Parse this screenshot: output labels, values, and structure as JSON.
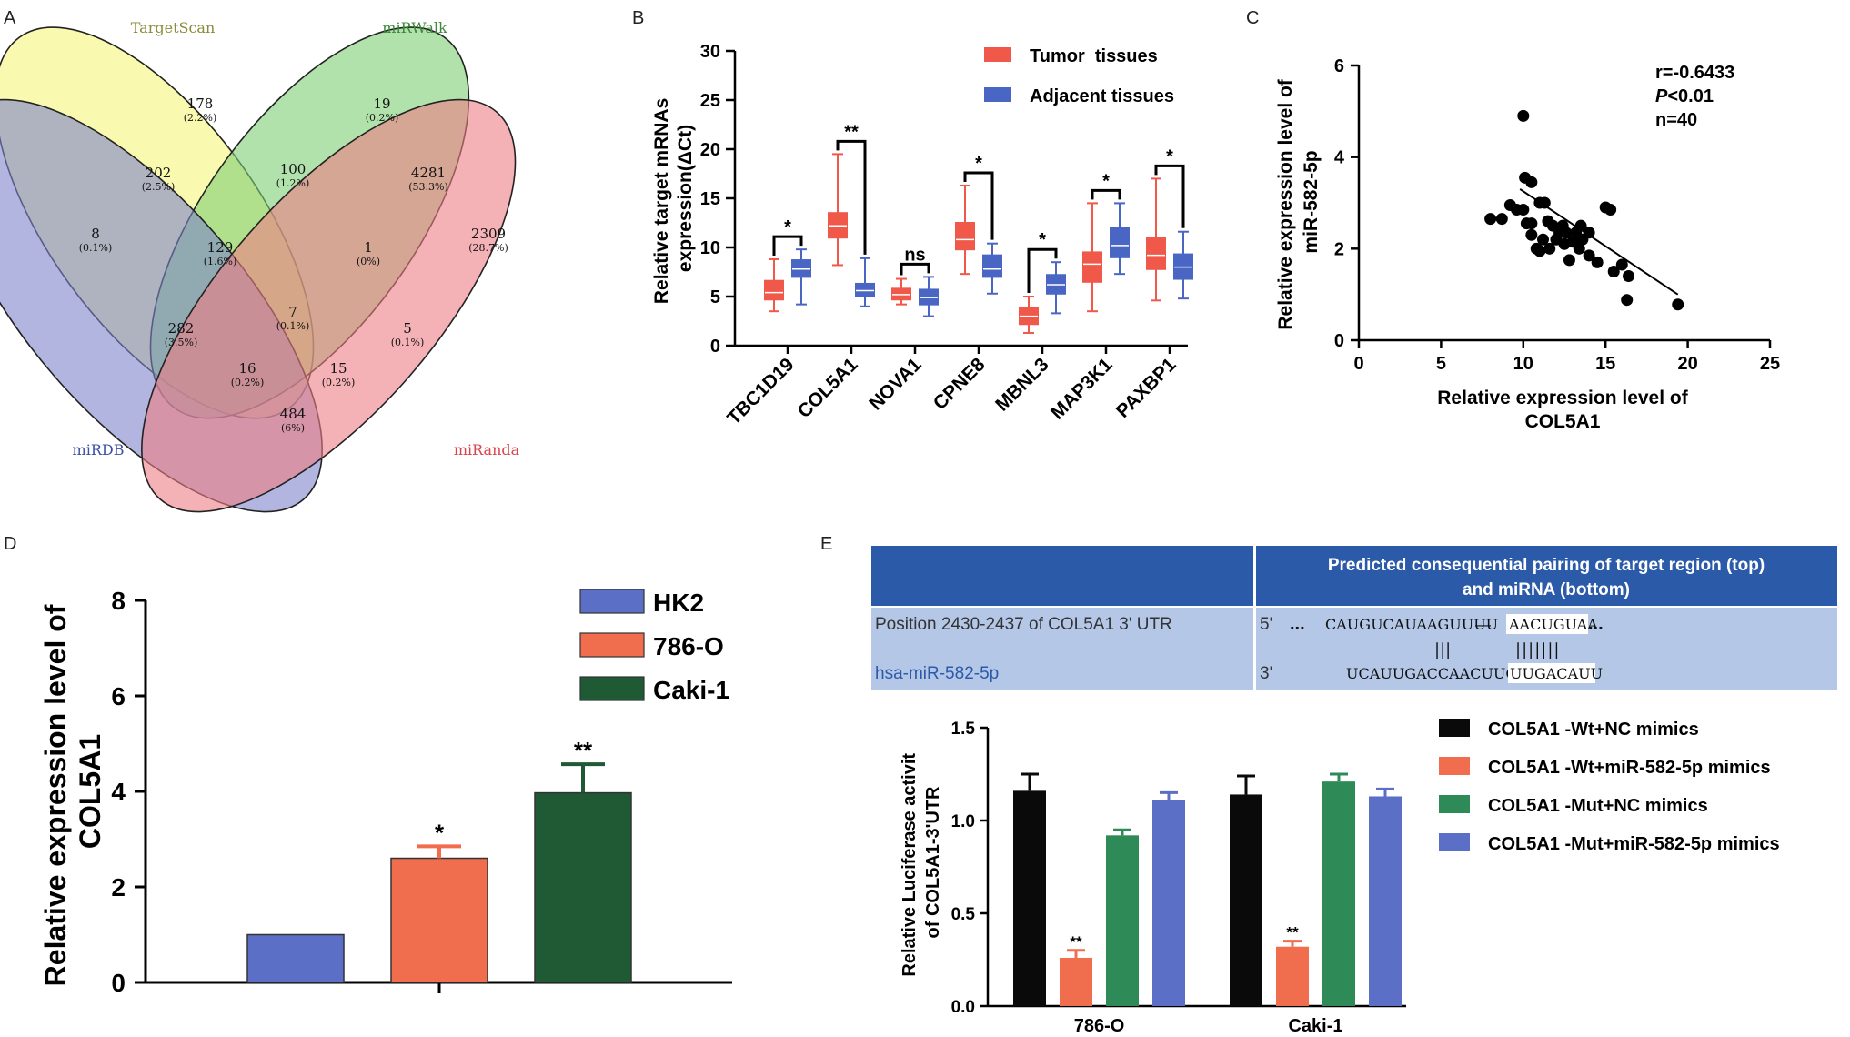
{
  "panels": [
    "A",
    "B",
    "C",
    "D",
    "E"
  ],
  "chart_data": [
    {
      "panel": "A",
      "type": "venn",
      "sets": [
        {
          "name": "TargetScan",
          "color": "#f5f57a",
          "label_color": "#8a8a3a"
        },
        {
          "name": "miRWalk",
          "color": "#7fcf75",
          "label_color": "#3d8a3d"
        },
        {
          "name": "miRDB",
          "color": "#7d84c9",
          "label_color": "#3b4fa8"
        },
        {
          "name": "miRanda",
          "color": "#ef7f86",
          "label_color": "#d9454d"
        }
      ],
      "regions": [
        {
          "count": "178",
          "pct": "(2.2%)"
        },
        {
          "count": "19",
          "pct": "(0.2%)"
        },
        {
          "count": "202",
          "pct": "(2.5%)"
        },
        {
          "count": "100",
          "pct": "(1.2%)"
        },
        {
          "count": "4281",
          "pct": "(53.3%)"
        },
        {
          "count": "8",
          "pct": "(0.1%)"
        },
        {
          "count": "129",
          "pct": "(1.6%)"
        },
        {
          "count": "1",
          "pct": "(0%)"
        },
        {
          "count": "2309",
          "pct": "(28.7%)"
        },
        {
          "count": "282",
          "pct": "(3.5%)"
        },
        {
          "count": "7",
          "pct": "(0.1%)"
        },
        {
          "count": "5",
          "pct": "(0.1%)"
        },
        {
          "count": "16",
          "pct": "(0.2%)"
        },
        {
          "count": "15",
          "pct": "(0.2%)"
        },
        {
          "count": "484",
          "pct": "(6%)"
        }
      ]
    },
    {
      "panel": "B",
      "type": "box",
      "ylabel": "Relative target mRNAs expression(ΔCt)",
      "ylim": [
        0,
        30
      ],
      "yticks": [
        0,
        5,
        10,
        15,
        20,
        25,
        30
      ],
      "categories": [
        "TBC1D19",
        "COL5A1",
        "NOVA1",
        "CPNE8",
        "MBNL3",
        "MAP3K1",
        "PAXBP1"
      ],
      "significance": [
        "*",
        "**",
        "ns",
        "*",
        "*",
        "*",
        "*"
      ],
      "series": [
        {
          "name": "Tumor  tissues",
          "color": "#f0584a",
          "boxes": [
            {
              "min": 3.5,
              "q1": 4.7,
              "median": 5.4,
              "q3": 6.6,
              "max": 8.8
            },
            {
              "min": 8.2,
              "q1": 11.0,
              "median": 12.2,
              "q3": 13.5,
              "max": 19.5
            },
            {
              "min": 4.2,
              "q1": 4.7,
              "median": 5.2,
              "q3": 5.8,
              "max": 6.8
            },
            {
              "min": 7.3,
              "q1": 9.8,
              "median": 10.8,
              "q3": 12.5,
              "max": 16.3
            },
            {
              "min": 1.3,
              "q1": 2.2,
              "median": 3.0,
              "q3": 3.8,
              "max": 5.0
            },
            {
              "min": 3.5,
              "q1": 6.5,
              "median": 8.3,
              "q3": 9.5,
              "max": 14.5
            },
            {
              "min": 4.6,
              "q1": 7.8,
              "median": 9.2,
              "q3": 11.0,
              "max": 17.0
            }
          ]
        },
        {
          "name": "Adjacent tissues",
          "color": "#4a66c4",
          "boxes": [
            {
              "min": 4.2,
              "q1": 7.0,
              "median": 7.8,
              "q3": 8.7,
              "max": 9.8
            },
            {
              "min": 4.0,
              "q1": 5.0,
              "median": 5.6,
              "q3": 6.3,
              "max": 8.9
            },
            {
              "min": 3.0,
              "q1": 4.2,
              "median": 4.9,
              "q3": 5.7,
              "max": 7.0
            },
            {
              "min": 5.3,
              "q1": 7.0,
              "median": 7.8,
              "q3": 9.2,
              "max": 10.4
            },
            {
              "min": 3.3,
              "q1": 5.3,
              "median": 6.2,
              "q3": 7.2,
              "max": 8.5
            },
            {
              "min": 7.3,
              "q1": 9.0,
              "median": 10.2,
              "q3": 12.0,
              "max": 14.5
            },
            {
              "min": 4.8,
              "q1": 6.8,
              "median": 8.0,
              "q3": 9.3,
              "max": 11.6
            }
          ]
        }
      ]
    },
    {
      "panel": "C",
      "type": "scatter",
      "xlabel": "Relative expression level of COL5A1",
      "xlabel_lines": [
        "Relative expression level of",
        "COL5A1"
      ],
      "ylabel": "Relative expression level of miR-582-5p",
      "ylabel_lines": [
        "Relative expression level of",
        "miR-582-5p"
      ],
      "xlim": [
        0,
        25
      ],
      "ylim": [
        0,
        6
      ],
      "xticks": [
        0,
        5,
        10,
        15,
        20,
        25
      ],
      "yticks": [
        0,
        2,
        4,
        6
      ],
      "annotation": {
        "r": "r=-0.6433",
        "p_italic": "P",
        "p_rest": "<0.01",
        "n": "n=40"
      },
      "trend": {
        "x1": 9.8,
        "y1": 3.3,
        "x2": 19.4,
        "y2": 1.0
      },
      "points": [
        [
          10.0,
          4.9
        ],
        [
          10.1,
          3.55
        ],
        [
          10.5,
          3.45
        ],
        [
          8.0,
          2.65
        ],
        [
          8.7,
          2.65
        ],
        [
          9.2,
          2.95
        ],
        [
          9.6,
          2.85
        ],
        [
          10.0,
          2.85
        ],
        [
          10.2,
          2.55
        ],
        [
          10.5,
          2.55
        ],
        [
          11.0,
          3.0
        ],
        [
          11.3,
          3.0
        ],
        [
          11.5,
          2.6
        ],
        [
          11.8,
          2.5
        ],
        [
          12.2,
          2.35
        ],
        [
          12.6,
          2.35
        ],
        [
          13.2,
          2.35
        ],
        [
          13.5,
          2.5
        ],
        [
          14.0,
          2.35
        ],
        [
          15.0,
          2.9
        ],
        [
          15.3,
          2.85
        ],
        [
          10.5,
          2.3
        ],
        [
          11.2,
          2.2
        ],
        [
          11.6,
          2.0
        ],
        [
          12.0,
          2.2
        ],
        [
          12.5,
          2.1
        ],
        [
          13.0,
          2.15
        ],
        [
          13.4,
          2.0
        ],
        [
          10.8,
          2.0
        ],
        [
          11.0,
          1.95
        ],
        [
          14.0,
          1.85
        ],
        [
          14.5,
          1.7
        ],
        [
          12.8,
          1.75
        ],
        [
          13.6,
          2.2
        ],
        [
          15.5,
          1.5
        ],
        [
          16.0,
          1.65
        ],
        [
          16.4,
          1.4
        ],
        [
          16.3,
          0.88
        ],
        [
          19.4,
          0.78
        ],
        [
          12.4,
          2.5
        ]
      ]
    },
    {
      "panel": "D",
      "type": "bar",
      "ylabel": "Relative expression level of COL5A1",
      "ylabel_lines": [
        "Relative expression level of",
        "COL5A1"
      ],
      "ylim": [
        0,
        8
      ],
      "yticks": [
        0,
        2,
        4,
        6,
        8
      ],
      "categories": [
        "HK2",
        "786-O",
        "Caki-1"
      ],
      "values": [
        1.0,
        2.6,
        3.97
      ],
      "errors": [
        0,
        0.25,
        0.6
      ],
      "significance": [
        "",
        "*",
        "**"
      ],
      "colors": [
        "#5b6fc6",
        "#f06e4e",
        "#1f5a34"
      ]
    },
    {
      "panel": "E",
      "type": "bar",
      "ylabel": "Relative Luciferase activit of COL5A1-3'UTR",
      "ylabel_lines": [
        "Relative Luciferase activit",
        "of COL5A1-3'UTR"
      ],
      "ylim": [
        0,
        1.5
      ],
      "yticks": [
        "0.0",
        "0.5",
        "1.0",
        "1.5"
      ],
      "categories": [
        "786-O",
        "Caki-1"
      ],
      "series": [
        {
          "name": "COL5A1 -Wt+NC mimics",
          "color": "#0a0a0a",
          "values": [
            1.16,
            1.14
          ],
          "errors": [
            0.09,
            0.1
          ],
          "sig": [
            "",
            ""
          ]
        },
        {
          "name": "COL5A1 -Wt+miR-582-5p mimics",
          "color": "#f06e4e",
          "values": [
            0.26,
            0.32
          ],
          "errors": [
            0.04,
            0.03
          ],
          "sig": [
            "**",
            "**"
          ]
        },
        {
          "name": "COL5A1 -Mut+NC mimics",
          "color": "#2e8b57",
          "values": [
            0.92,
            1.21
          ],
          "errors": [
            0.03,
            0.04
          ],
          "sig": [
            "",
            ""
          ]
        },
        {
          "name": "COL5A1 -Mut+miR-582-5p mimics",
          "color": "#5b6fc6",
          "values": [
            1.11,
            1.13
          ],
          "errors": [
            0.04,
            0.04
          ],
          "sig": [
            "",
            ""
          ]
        }
      ]
    }
  ],
  "pairing_table": {
    "header": "Predicted consequential pairing of target region (top) and miRNA (bottom)",
    "header_lines": [
      "Predicted consequential pairing of target region (top)",
      "and miRNA (bottom)"
    ],
    "row1_label": "Position 2430-2437 of COL5A1 3' UTR",
    "row1_prime": "5'",
    "row1_dots": "...",
    "row1_seq": "CAUGUCAUAAGUUUU",
    "row1_dash": "—",
    "row1_seed": "AACUGUAA",
    "row1_tail": "...",
    "pair_bars_1": "|||",
    "pair_bars_2": "|||||||",
    "row2_label": "hsa-miR-582-5p",
    "row2_prime": "3'",
    "row2_seq": "UCAUUGACCAACUUG",
    "row2_seed": "UUGACAUU"
  }
}
